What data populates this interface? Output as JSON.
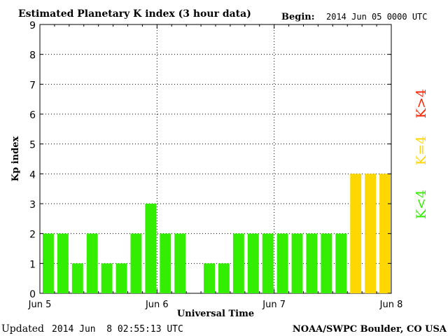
{
  "header": {
    "title": "Estimated Planetary K index (3 hour data)",
    "begin_label": "Begin:",
    "begin_value": "2014 Jun 05 0000 UTC"
  },
  "footer": {
    "updated_label": "Updated",
    "updated_value": "2014 Jun  8 02:55:13 UTC",
    "source": "NOAA/SWPC Boulder, CO USA"
  },
  "legend": {
    "low": {
      "label": "K<4",
      "color": "#33ee00"
    },
    "mid": {
      "label": "K=4",
      "color": "#ffd700"
    },
    "high": {
      "label": "K>4",
      "color": "#ff2200"
    }
  },
  "chart_data": {
    "type": "bar",
    "title": "Estimated Planetary K index (3 hour data)",
    "xlabel": "Universal Time",
    "ylabel": "Kp index",
    "ylim": [
      0,
      9
    ],
    "yticks": [
      "0",
      "1",
      "2",
      "3",
      "4",
      "5",
      "6",
      "7",
      "8",
      "9"
    ],
    "xticks": [
      "Jun 5",
      "Jun 6",
      "Jun 7",
      "Jun 8"
    ],
    "interval_hours": 3,
    "grid": true,
    "values": [
      2,
      2,
      1,
      2,
      1,
      1,
      2,
      3,
      2,
      2,
      null,
      1,
      1,
      2,
      2,
      2,
      2,
      2,
      2,
      2,
      2,
      4,
      4,
      4
    ]
  }
}
